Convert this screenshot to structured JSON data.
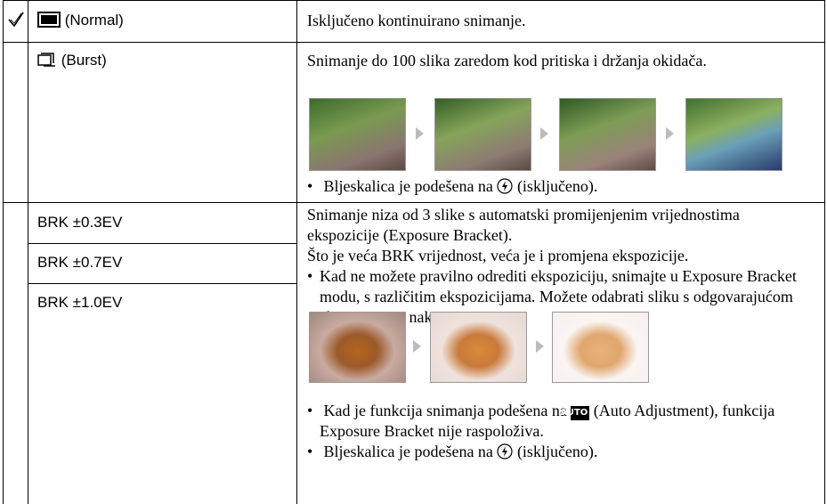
{
  "rows": [
    {
      "option": "(Normal)",
      "description": "Isključeno kontinuirano snimanje."
    },
    {
      "option": "(Burst)",
      "description": "Snimanje do 100 slika zaredom kod pritiska i držanja okidača.",
      "note": [
        "Bljeskalica je podešena na",
        "(isključeno)."
      ]
    }
  ],
  "bracket": {
    "options": [
      "BRK ±0.3EV",
      "BRK ±0.7EV",
      "BRK ±1.0EV"
    ],
    "description": [
      "Snimanje niza od 3 slike s automatski promijenjenim vrijednostima ekspozicije (Exposure Bracket).",
      "Što je veća BRK vrijednost, veća je i promjena ekspozicije."
    ],
    "notes": [
      "Kad ne možete pravilno odrediti ekspoziciju, snimajte u Exposure Bracket modu, s različitim ekspozicijama. Možete odabrati sliku s odgovarajućom ekspozicijom nakon snimanja.",
      [
        "Kad je funkcija snimanja podešena na",
        "AUTO",
        "(Auto Adjustment), funkcija Exposure Bracket nije raspoloživa."
      ],
      [
        "Bljeskalica je podešena na",
        "(isključeno)."
      ]
    ]
  }
}
